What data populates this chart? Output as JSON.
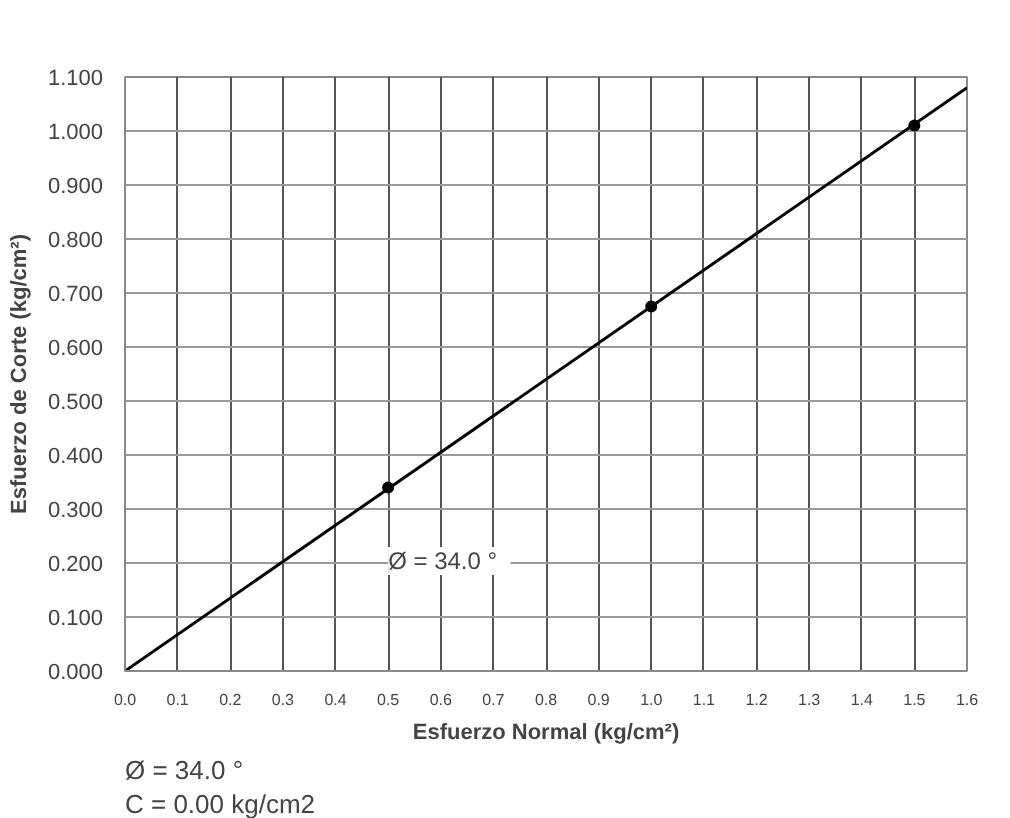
{
  "chart_data": {
    "type": "scatter",
    "xlabel": "Esfuerzo Normal (kg/cm²)",
    "ylabel": "Esfuerzo de Corte (kg/cm²)",
    "series": [
      {
        "color": "#000000",
        "marker": "circle",
        "x": [
          0.5,
          1.0,
          1.5
        ],
        "values": [
          0.34,
          0.675,
          1.01
        ]
      },
      {
        "type": "line",
        "color": "#000000",
        "marker": "none",
        "line_style": "solid",
        "x": [
          0.0,
          1.6
        ],
        "values": [
          0.0,
          1.08
        ]
      }
    ],
    "xlim": [
      0,
      1.6
    ],
    "ylim": [
      0,
      1.1
    ],
    "xticks": [
      {
        "value": 0,
        "label": "0.0"
      },
      {
        "value": 0.1,
        "label": "0.1"
      },
      {
        "value": 0.2,
        "label": "0.2"
      },
      {
        "value": 0.3,
        "label": "0.3"
      },
      {
        "value": 0.4,
        "label": "0.4"
      },
      {
        "value": 0.5,
        "label": "0.5"
      },
      {
        "value": 0.6,
        "label": "0.6"
      },
      {
        "value": 0.7,
        "label": "0.7"
      },
      {
        "value": 0.8,
        "label": "0.8"
      },
      {
        "value": 0.9,
        "label": "0.9"
      },
      {
        "value": 1.0,
        "label": "1.0"
      },
      {
        "value": 1.1,
        "label": "1.1"
      },
      {
        "value": 1.2,
        "label": "1.2"
      },
      {
        "value": 1.3,
        "label": "1.3"
      },
      {
        "value": 1.4,
        "label": "1.4"
      },
      {
        "value": 1.5,
        "label": "1.5"
      },
      {
        "value": 1.6,
        "label": "1.6"
      }
    ],
    "yticks": [
      {
        "value": 0,
        "label": "0.000"
      },
      {
        "value": 0.1,
        "label": "0.100"
      },
      {
        "value": 0.2,
        "label": "0.200"
      },
      {
        "value": 0.3,
        "label": "0.300"
      },
      {
        "value": 0.4,
        "label": "0.400"
      },
      {
        "value": 0.5,
        "label": "0.500"
      },
      {
        "value": 0.6,
        "label": "0.600"
      },
      {
        "value": 0.7,
        "label": "0.700"
      },
      {
        "value": 0.8,
        "label": "0.800"
      },
      {
        "value": 0.9,
        "label": "0.900"
      },
      {
        "value": 1.0,
        "label": "1.000"
      },
      {
        "value": 1.1,
        "label": "1.100"
      }
    ],
    "grid": true,
    "annotations": [
      "Ø = 34.0   °",
      "Ø =   34.0  °",
      "C =   0.00  kg/cm2"
    ]
  }
}
